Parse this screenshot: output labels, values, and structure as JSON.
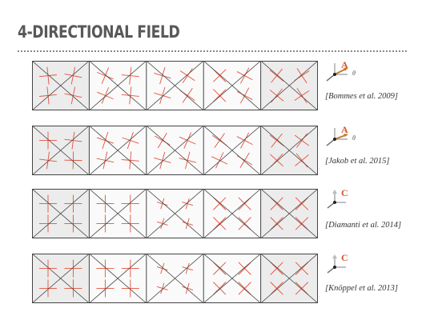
{
  "slide": {
    "title": "4-DIRECTIONAL FIELD"
  },
  "rows": [
    {
      "citation": "[Bommes et al. 2009]",
      "glyph_letter": "A",
      "angle_label": "θ"
    },
    {
      "citation": "[Jakob et al. 2015]",
      "glyph_letter": "A",
      "angle_label": "θ"
    },
    {
      "citation": "[Diamanti et al. 2014]",
      "glyph_letter": "C",
      "angle_label": ""
    },
    {
      "citation": "[Knöppel et al. 2013]",
      "glyph_letter": "C",
      "angle_label": ""
    }
  ],
  "colors": {
    "field_lines": "#e2513a",
    "mesh_edges": "#444444",
    "title": "#585858",
    "glyph_accent": "#d4542f",
    "glyph_arrow": "#c07a2a"
  },
  "icons": [
    "cross-field-axis-icon"
  ]
}
